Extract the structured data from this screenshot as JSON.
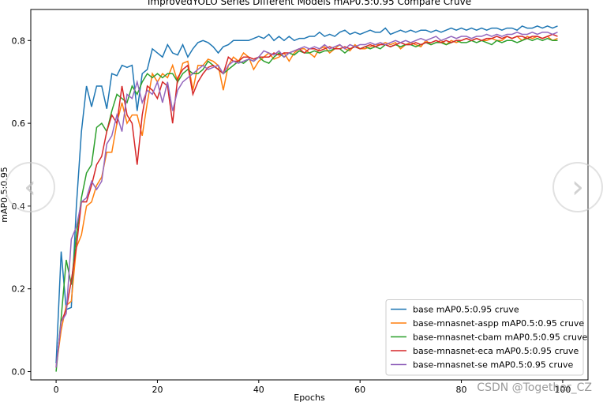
{
  "chart_data": {
    "type": "line",
    "title": "ImprovedYOLO Series Different Models mAP0.5:0.95 Compare Cruve",
    "xlabel": "Epochs",
    "ylabel": "mAP0.5:0.95",
    "xlim": [
      -5,
      105
    ],
    "ylim": [
      -0.02,
      0.875
    ],
    "xticks": [
      "0",
      "20",
      "40",
      "60",
      "80",
      "100"
    ],
    "yticks": [
      "0.0",
      "0.2",
      "0.4",
      "0.6",
      "0.8"
    ],
    "legend_position": "lower-right",
    "grid": false,
    "series": [
      {
        "name": "base mAP0.5:0.95 cruve",
        "color": "#1f77b4",
        "values": [
          0.02,
          0.29,
          0.15,
          0.155,
          0.4,
          0.58,
          0.69,
          0.64,
          0.69,
          0.69,
          0.635,
          0.72,
          0.715,
          0.74,
          0.735,
          0.74,
          0.63,
          0.72,
          0.73,
          0.78,
          0.77,
          0.76,
          0.79,
          0.77,
          0.765,
          0.79,
          0.76,
          0.78,
          0.795,
          0.8,
          0.795,
          0.785,
          0.77,
          0.785,
          0.79,
          0.8,
          0.8,
          0.8,
          0.8,
          0.805,
          0.81,
          0.805,
          0.815,
          0.8,
          0.81,
          0.8,
          0.81,
          0.8,
          0.805,
          0.805,
          0.81,
          0.81,
          0.82,
          0.81,
          0.815,
          0.81,
          0.82,
          0.825,
          0.815,
          0.82,
          0.815,
          0.82,
          0.825,
          0.82,
          0.82,
          0.83,
          0.815,
          0.82,
          0.825,
          0.82,
          0.825,
          0.82,
          0.825,
          0.825,
          0.82,
          0.825,
          0.82,
          0.825,
          0.83,
          0.825,
          0.83,
          0.825,
          0.83,
          0.825,
          0.83,
          0.825,
          0.83,
          0.83,
          0.825,
          0.83,
          0.83,
          0.825,
          0.835,
          0.83,
          0.83,
          0.835,
          0.83,
          0.835,
          0.83,
          0.835
        ]
      },
      {
        "name": "base-mnasnet-aspp mAP0.5:0.95 cruve",
        "color": "#ff7f0e",
        "values": [
          0.01,
          0.1,
          0.16,
          0.17,
          0.3,
          0.33,
          0.4,
          0.41,
          0.45,
          0.47,
          0.53,
          0.53,
          0.6,
          0.65,
          0.6,
          0.62,
          0.62,
          0.57,
          0.65,
          0.72,
          0.7,
          0.72,
          0.71,
          0.74,
          0.7,
          0.745,
          0.75,
          0.68,
          0.74,
          0.74,
          0.755,
          0.75,
          0.74,
          0.68,
          0.74,
          0.76,
          0.75,
          0.77,
          0.76,
          0.73,
          0.75,
          0.76,
          0.77,
          0.755,
          0.76,
          0.77,
          0.75,
          0.77,
          0.78,
          0.78,
          0.77,
          0.76,
          0.78,
          0.785,
          0.77,
          0.78,
          0.79,
          0.78,
          0.775,
          0.79,
          0.78,
          0.78,
          0.785,
          0.79,
          0.79,
          0.795,
          0.79,
          0.795,
          0.78,
          0.79,
          0.795,
          0.79,
          0.785,
          0.8,
          0.79,
          0.795,
          0.8,
          0.79,
          0.8,
          0.795,
          0.8,
          0.805,
          0.8,
          0.805,
          0.8,
          0.8,
          0.805,
          0.8,
          0.8,
          0.81,
          0.805,
          0.81,
          0.8,
          0.81,
          0.805,
          0.81,
          0.805,
          0.81,
          0.8,
          0.805
        ]
      },
      {
        "name": "base-mnasnet-cbam mAP0.5:0.95 cruve",
        "color": "#2ca02c",
        "values": [
          0.0,
          0.13,
          0.27,
          0.21,
          0.33,
          0.42,
          0.48,
          0.5,
          0.59,
          0.6,
          0.58,
          0.63,
          0.67,
          0.66,
          0.65,
          0.69,
          0.67,
          0.7,
          0.72,
          0.71,
          0.72,
          0.71,
          0.72,
          0.72,
          0.7,
          0.72,
          0.73,
          0.72,
          0.72,
          0.73,
          0.75,
          0.74,
          0.73,
          0.72,
          0.73,
          0.74,
          0.75,
          0.745,
          0.755,
          0.75,
          0.76,
          0.75,
          0.745,
          0.76,
          0.77,
          0.76,
          0.77,
          0.765,
          0.775,
          0.77,
          0.77,
          0.775,
          0.77,
          0.775,
          0.775,
          0.78,
          0.78,
          0.77,
          0.78,
          0.785,
          0.78,
          0.785,
          0.78,
          0.785,
          0.78,
          0.79,
          0.785,
          0.79,
          0.785,
          0.79,
          0.79,
          0.785,
          0.79,
          0.795,
          0.79,
          0.795,
          0.795,
          0.79,
          0.795,
          0.8,
          0.795,
          0.795,
          0.8,
          0.795,
          0.8,
          0.795,
          0.79,
          0.8,
          0.795,
          0.8,
          0.8,
          0.795,
          0.8,
          0.805,
          0.8,
          0.805,
          0.8,
          0.805,
          0.8,
          0.8
        ]
      },
      {
        "name": "base-mnasnet-eca mAP0.5:0.95 cruve",
        "color": "#d62728",
        "values": [
          0.01,
          0.12,
          0.15,
          0.22,
          0.3,
          0.41,
          0.41,
          0.45,
          0.5,
          0.52,
          0.58,
          0.62,
          0.6,
          0.69,
          0.62,
          0.6,
          0.5,
          0.62,
          0.69,
          0.68,
          0.66,
          0.7,
          0.69,
          0.6,
          0.71,
          0.73,
          0.74,
          0.67,
          0.7,
          0.72,
          0.735,
          0.74,
          0.73,
          0.72,
          0.76,
          0.75,
          0.75,
          0.76,
          0.76,
          0.755,
          0.76,
          0.76,
          0.76,
          0.77,
          0.765,
          0.77,
          0.77,
          0.775,
          0.78,
          0.77,
          0.78,
          0.78,
          0.775,
          0.78,
          0.785,
          0.78,
          0.78,
          0.785,
          0.78,
          0.785,
          0.78,
          0.785,
          0.79,
          0.785,
          0.79,
          0.79,
          0.785,
          0.79,
          0.795,
          0.79,
          0.79,
          0.795,
          0.79,
          0.795,
          0.795,
          0.8,
          0.795,
          0.8,
          0.795,
          0.8,
          0.8,
          0.805,
          0.8,
          0.805,
          0.8,
          0.805,
          0.805,
          0.81,
          0.805,
          0.81,
          0.805,
          0.81,
          0.81,
          0.805,
          0.81,
          0.81,
          0.805,
          0.81,
          0.815,
          0.81
        ]
      },
      {
        "name": "base-mnasnet-se mAP0.5:0.95 cruve",
        "color": "#9467bd",
        "values": [
          0.01,
          0.12,
          0.14,
          0.32,
          0.35,
          0.41,
          0.42,
          0.46,
          0.44,
          0.46,
          0.55,
          0.57,
          0.62,
          0.58,
          0.67,
          0.66,
          0.7,
          0.65,
          0.68,
          0.67,
          0.7,
          0.65,
          0.7,
          0.63,
          0.68,
          0.7,
          0.71,
          0.72,
          0.73,
          0.74,
          0.73,
          0.735,
          0.74,
          0.72,
          0.74,
          0.75,
          0.745,
          0.75,
          0.755,
          0.75,
          0.76,
          0.775,
          0.77,
          0.765,
          0.775,
          0.76,
          0.77,
          0.775,
          0.78,
          0.785,
          0.78,
          0.785,
          0.78,
          0.79,
          0.78,
          0.785,
          0.79,
          0.78,
          0.79,
          0.785,
          0.79,
          0.79,
          0.795,
          0.79,
          0.795,
          0.79,
          0.795,
          0.8,
          0.795,
          0.8,
          0.795,
          0.8,
          0.805,
          0.8,
          0.805,
          0.81,
          0.8,
          0.805,
          0.81,
          0.805,
          0.81,
          0.81,
          0.805,
          0.81,
          0.81,
          0.815,
          0.81,
          0.815,
          0.81,
          0.815,
          0.815,
          0.82,
          0.815,
          0.815,
          0.82,
          0.815,
          0.82,
          0.82,
          0.815,
          0.82
        ]
      }
    ]
  },
  "overlay": {
    "watermark": "CSDN @Together_CZ",
    "prev_arrow": "‹",
    "next_arrow": "›"
  }
}
